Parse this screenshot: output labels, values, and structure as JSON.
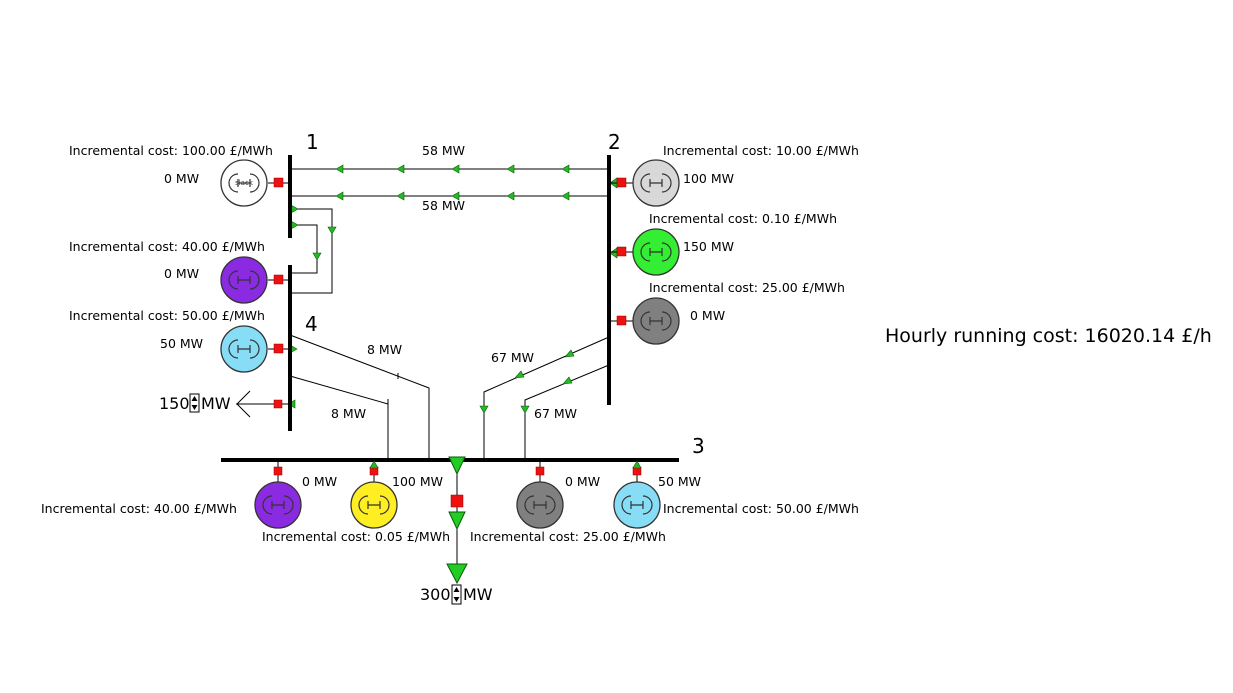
{
  "buses": [
    {
      "id": "bus-1",
      "label": "1"
    },
    {
      "id": "bus-2",
      "label": "2"
    },
    {
      "id": "bus-3",
      "label": "3"
    },
    {
      "id": "bus-4",
      "label": "4"
    }
  ],
  "generators": [
    {
      "id": "gen-bus1",
      "output": "0 MW",
      "cost": "Incremental cost: 100.00 £/MWh",
      "color": "#ffffff",
      "slack": "slack"
    },
    {
      "id": "gen-bus4-purple",
      "output": "0 MW",
      "cost": "Incremental cost: 40.00 £/MWh",
      "color": "#8a2be2"
    },
    {
      "id": "gen-bus4-cyan",
      "output": "50 MW",
      "cost": "Incremental cost: 50.00 £/MWh",
      "color": "#87ddf5"
    },
    {
      "id": "gen-bus2-lightgrey",
      "output": "100 MW",
      "cost": "Incremental cost: 10.00 £/MWh",
      "color": "#d8d8d8"
    },
    {
      "id": "gen-bus2-green",
      "output": "150 MW",
      "cost": "Incremental cost: 0.10 £/MWh",
      "color": "#33ee33"
    },
    {
      "id": "gen-bus2-grey",
      "output": "0 MW",
      "cost": "Incremental cost: 25.00 £/MWh",
      "color": "#808080"
    },
    {
      "id": "gen-bus3-purple",
      "output": "0 MW",
      "cost": "Incremental cost: 40.00 £/MWh",
      "color": "#8a2be2"
    },
    {
      "id": "gen-bus3-yellow",
      "output": "100 MW",
      "cost": "Incremental cost: 0.05 £/MWh",
      "color": "#ffee22"
    },
    {
      "id": "gen-bus3-grey",
      "output": "0 MW",
      "cost": "Incremental cost: 25.00 £/MWh",
      "color": "#808080"
    },
    {
      "id": "gen-bus3-cyan",
      "output": "50 MW",
      "cost": "Incremental cost: 50.00 £/MWh",
      "color": "#87ddf5"
    }
  ],
  "flows": {
    "line_1_2_top": "58 MW",
    "line_1_2_bottom": "58 MW",
    "line_4_3_upper": "8 MW",
    "line_4_3_lower": "8 MW",
    "line_2_3_upper": "67 MW",
    "line_2_3_lower": "67 MW"
  },
  "loads": {
    "bus4": {
      "value": "150",
      "unit": "MW"
    },
    "bus3": {
      "value": "300",
      "unit": "MW"
    }
  },
  "hourly_cost": "Hourly running cost: 16020.14 £/h",
  "colors": {
    "flow_arrow": "#22bb22",
    "breaker": "#ee1111",
    "line": "#000000"
  }
}
